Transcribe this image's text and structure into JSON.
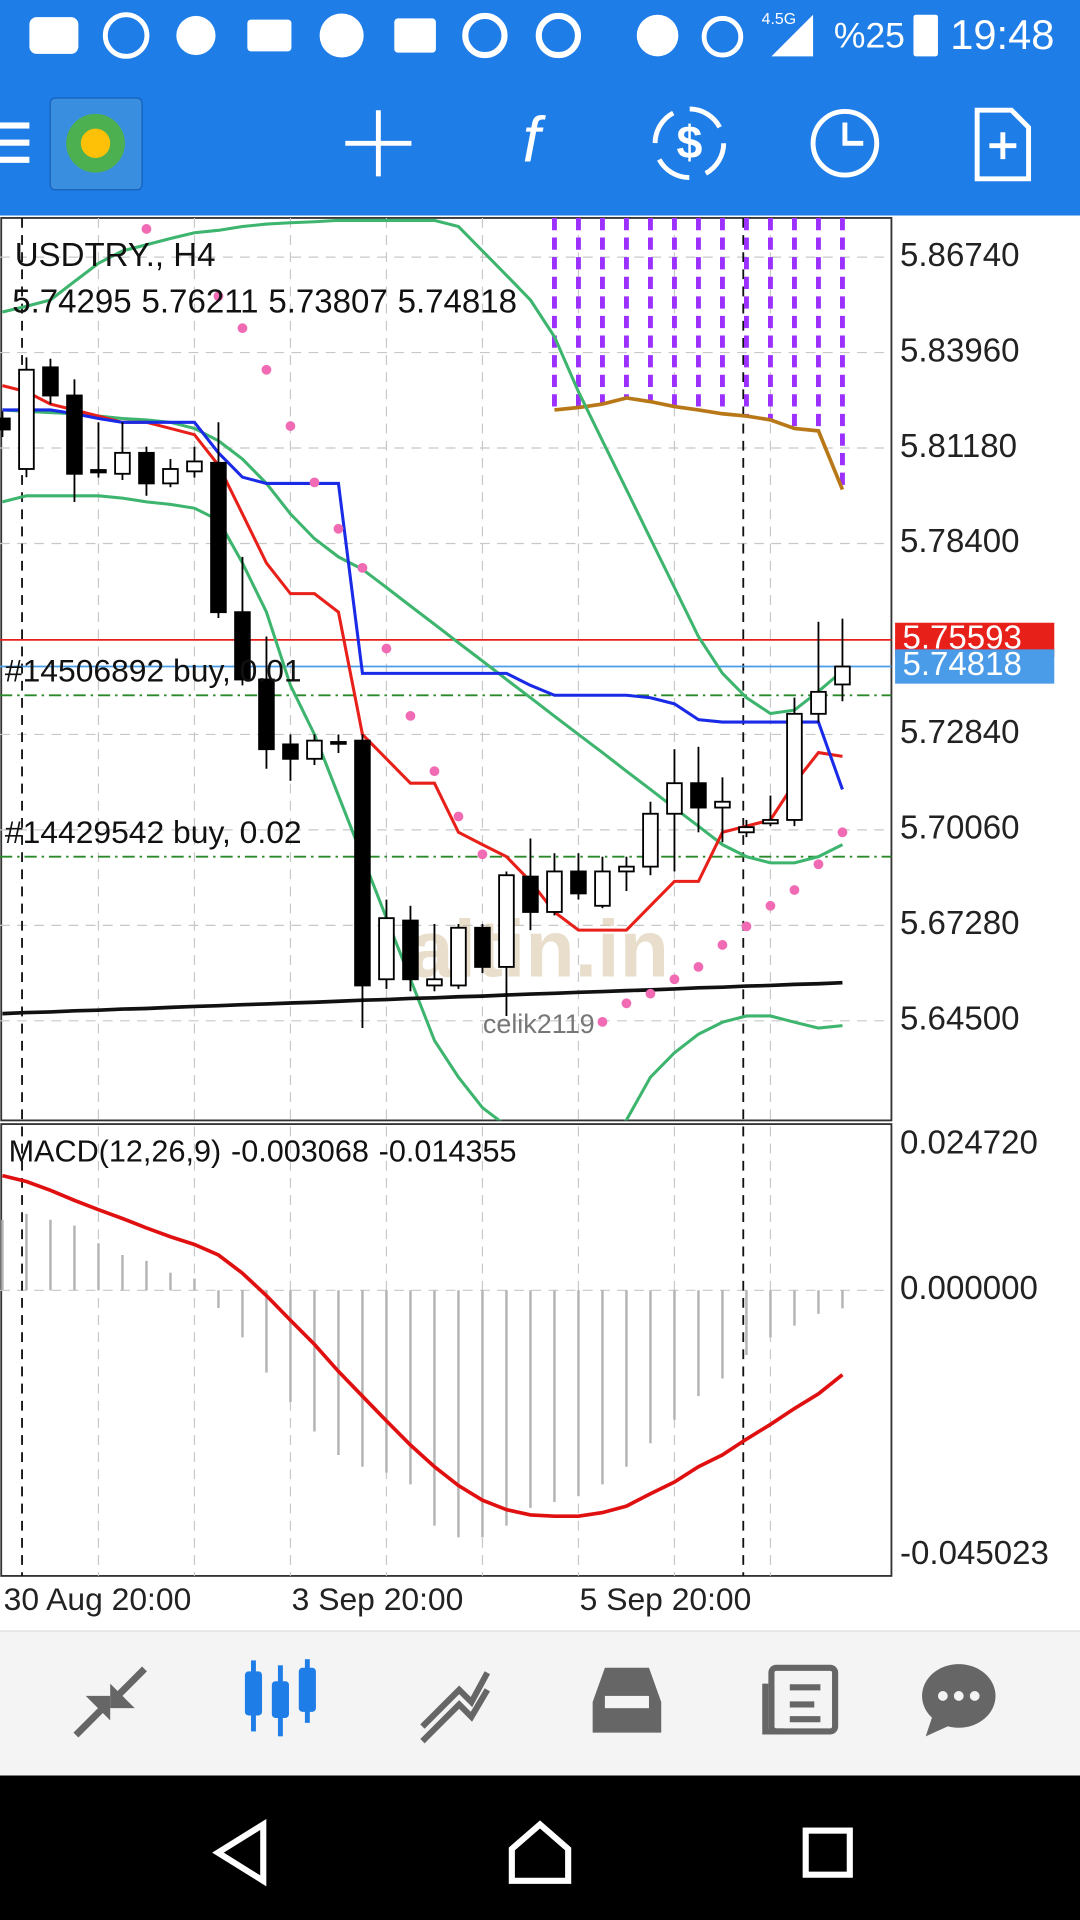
{
  "status_bar": {
    "network": "4.5G",
    "battery": "%25",
    "time": "19:48"
  },
  "chart_data": [
    {
      "type": "candlestick",
      "title": "USDTRY., H4",
      "categories": [
        "30 Aug 20:00",
        null,
        null,
        null,
        null,
        null,
        null,
        null,
        null,
        null,
        null,
        null,
        "3 Sep 20:00",
        null,
        null,
        null,
        null,
        null,
        null,
        null,
        null,
        null,
        null,
        null,
        "5 Sep 20:00",
        null,
        null,
        null,
        null,
        null,
        null,
        null,
        null,
        null,
        null,
        null
      ],
      "open": [
        5.8204,
        5.8057,
        5.8353,
        5.8271,
        5.8054,
        5.8043,
        5.8104,
        5.8015,
        5.805,
        5.8075,
        5.764,
        5.7444,
        5.7255,
        5.7213,
        5.7262,
        5.7266,
        5.6571,
        5.6742,
        5.6553,
        5.6553,
        5.6721,
        5.6607,
        5.687,
        5.6767,
        5.6885,
        5.6785,
        5.6885,
        5.6899,
        5.7053,
        5.7142,
        5.7071,
        5.6999,
        5.7025,
        5.7035,
        5.7344,
        5.74295
      ],
      "high": [
        5.8225,
        5.8382,
        5.8378,
        5.8318,
        5.8193,
        5.8193,
        5.8122,
        5.8086,
        5.8122,
        5.8193,
        5.7801,
        5.7569,
        5.7284,
        5.7284,
        5.7284,
        5.7284,
        5.6803,
        5.6785,
        5.6732,
        5.6732,
        5.6732,
        5.6885,
        5.6981,
        5.6938,
        5.6938,
        5.6928,
        5.6928,
        5.7088,
        5.7241,
        5.7248,
        5.7159,
        5.7035,
        5.7106,
        5.7391,
        5.7612,
        5.76211
      ],
      "low": [
        5.815,
        5.8033,
        5.8246,
        5.7961,
        5.8032,
        5.8025,
        5.7979,
        5.8004,
        5.8032,
        5.7623,
        5.7427,
        5.7184,
        5.7149,
        5.7195,
        5.723,
        5.6429,
        5.6543,
        5.6536,
        5.6536,
        5.6543,
        5.6589,
        5.6464,
        5.6714,
        5.6757,
        5.6803,
        5.6778,
        5.6828,
        5.6874,
        5.6885,
        5.6999,
        5.697,
        5.6985,
        5.7017,
        5.7017,
        5.7319,
        5.73807
      ],
      "close": [
        5.8172,
        5.8346,
        5.8271,
        5.8043,
        5.8047,
        5.8104,
        5.8015,
        5.8057,
        5.8079,
        5.764,
        5.7444,
        5.7241,
        5.7213,
        5.7266,
        5.7259,
        5.6553,
        5.6749,
        5.6571,
        5.6571,
        5.6721,
        5.6607,
        5.6874,
        5.6767,
        5.6885,
        5.6821,
        5.6885,
        5.6899,
        5.7053,
        5.7142,
        5.7071,
        5.7088,
        5.7014,
        5.7035,
        5.7344,
        5.7408,
        5.74818
      ],
      "up_color": "#ffffff",
      "down_color": "#000000",
      "ylim": [
        5.616,
        5.8788
      ],
      "yticks": [
        {
          "value": 5.8674,
          "label": "5.86740"
        },
        {
          "value": 5.8396,
          "label": "5.83960"
        },
        {
          "value": 5.8118,
          "label": "5.81180"
        },
        {
          "value": 5.784,
          "label": "5.78400"
        },
        {
          "value": 5.7284,
          "label": "5.72840"
        },
        {
          "value": 5.7006,
          "label": "5.70060"
        },
        {
          "value": 5.6728,
          "label": "5.67280"
        },
        {
          "value": 5.645,
          "label": "5.64500"
        }
      ],
      "grid": true,
      "cloud": {
        "color": "#9b30ff",
        "edge_color": "#b87818",
        "values": [
          null,
          null,
          null,
          null,
          null,
          null,
          null,
          null,
          null,
          null,
          null,
          null,
          null,
          null,
          null,
          null,
          null,
          null,
          null,
          null,
          null,
          null,
          null,
          5.8229,
          5.8236,
          5.8246,
          5.8264,
          5.8253,
          5.8239,
          5.8229,
          5.8218,
          5.8211,
          5.82,
          5.8175,
          5.8168,
          5.7997
        ]
      },
      "lines": [
        {
          "color": "#3db56e",
          "values": [
            5.8514,
            5.8531,
            5.8549,
            5.8603,
            5.8656,
            5.8692,
            5.871,
            5.8728,
            5.8745,
            5.8752,
            5.8763,
            5.877,
            5.8774,
            5.8777,
            5.8781,
            5.8781,
            5.8781,
            5.8781,
            5.8781,
            5.8763,
            5.8692,
            5.8621,
            5.8549,
            5.8442,
            5.8282,
            5.8139,
            5.7997,
            5.7854,
            5.7712,
            5.7569,
            5.7462,
            5.7391,
            5.7345,
            5.7355,
            5.7409,
            5.7469
          ]
        },
        {
          "color": "#3db56e",
          "values": [
            5.8229,
            5.8225,
            5.8221,
            5.8218,
            5.8211,
            5.8204,
            5.82,
            5.8193,
            5.8175,
            5.8139,
            5.8086,
            5.8015,
            5.7926,
            5.7854,
            5.7801,
            5.7765,
            5.7712,
            5.7658,
            5.7605,
            5.7551,
            5.7498,
            5.7444,
            5.7391,
            5.7337,
            5.7284,
            5.7231,
            5.7177,
            5.7124,
            5.707,
            5.7017,
            5.6963,
            5.6928,
            5.691,
            5.691,
            5.6928,
            5.6963
          ]
        },
        {
          "color": "#3db56e",
          "values": [
            5.7961,
            5.7979,
            5.7979,
            5.7979,
            5.7979,
            5.7972,
            5.7961,
            5.7954,
            5.7943,
            5.7908,
            5.7783,
            5.764,
            5.7427,
            5.7284,
            5.7106,
            5.6928,
            5.6749,
            5.6571,
            5.6393,
            5.6286,
            5.6197,
            5.6144,
            5.609,
            5.6054,
            5.6054,
            5.609,
            5.6161,
            5.6286,
            5.6357,
            5.6411,
            5.6446,
            5.6464,
            5.6464,
            5.6446,
            5.6429,
            5.6436
          ]
        },
        {
          "color": "#e8201a",
          "values": [
            5.83,
            5.8282,
            5.8246,
            5.8229,
            5.8211,
            5.8193,
            5.8193,
            5.8175,
            5.8157,
            5.8068,
            5.7926,
            5.7783,
            5.7694,
            5.7694,
            5.764,
            5.7284,
            5.7213,
            5.7142,
            5.7142,
            5.6999,
            5.6963,
            5.6928,
            5.6856,
            5.6767,
            5.6714,
            5.6714,
            5.6714,
            5.6785,
            5.6856,
            5.6856,
            5.6999,
            5.7017,
            5.7035,
            5.7142,
            5.7231,
            5.722
          ]
        },
        {
          "color": "#1a2be8",
          "values": [
            5.8229,
            5.8229,
            5.8229,
            5.8218,
            5.8204,
            5.8193,
            5.8193,
            5.8193,
            5.8193,
            5.8104,
            5.8033,
            5.8015,
            5.8015,
            5.8015,
            5.8015,
            5.7462,
            5.7462,
            5.7462,
            5.7462,
            5.7462,
            5.7462,
            5.7462,
            5.7427,
            5.7398,
            5.7398,
            5.7398,
            5.7398,
            5.7391,
            5.7373,
            5.7327,
            5.732,
            5.732,
            5.732,
            5.732,
            5.732,
            5.7124
          ]
        },
        {
          "color": "#111111",
          "values": [
            5.6471,
            5.6474,
            5.6476,
            5.6479,
            5.6481,
            5.6484,
            5.6486,
            5.6489,
            5.6492,
            5.6494,
            5.6497,
            5.6499,
            5.6502,
            5.6504,
            5.6507,
            5.651,
            5.6512,
            5.6515,
            5.6517,
            5.652,
            5.6522,
            5.6525,
            5.6528,
            5.653,
            5.6533,
            5.6535,
            5.6538,
            5.654,
            5.6543,
            5.6546,
            5.6548,
            5.6551,
            5.6553,
            5.6556,
            5.6558,
            5.6561
          ]
        }
      ],
      "sar": {
        "color": "#f06bb4",
        "values": [
          null,
          null,
          null,
          null,
          null,
          null,
          5.8756,
          null,
          null,
          5.856,
          5.8467,
          5.8346,
          5.8182,
          5.8018,
          5.7883,
          5.7769,
          5.7534,
          5.7338,
          5.7177,
          5.7045,
          5.6935,
          null,
          null,
          null,
          null,
          5.6447,
          5.6501,
          5.6529,
          5.6571,
          5.6607,
          5.6671,
          5.6725,
          5.6785,
          5.6831,
          5.6906,
          5.6999
        ]
      },
      "price_lines": [
        {
          "value": 5.75593,
          "color": "#e8201a"
        },
        {
          "value": 5.74818,
          "color": "#4a9be8"
        }
      ],
      "orders": [
        {
          "label": "#14506892 buy, 0.01",
          "value": 5.7398
        },
        {
          "label": "#14429542 buy, 0.02",
          "value": 5.6928
        }
      ],
      "watermark": "altin.in",
      "user": "celik2119"
    },
    {
      "type": "bar",
      "title": "MACD(12,26,9)",
      "series": [
        {
          "type": "bar",
          "color": "#b4b4b4",
          "values": [
            0.012,
            0.013,
            0.012,
            0.011,
            0.008,
            0.006,
            0.005,
            0.003,
            0.002,
            -0.003,
            -0.008,
            -0.014,
            -0.019,
            -0.024,
            -0.028,
            -0.03,
            -0.031,
            -0.033,
            -0.04,
            -0.042,
            -0.042,
            -0.04,
            -0.037,
            -0.036,
            -0.035,
            -0.033,
            -0.03,
            -0.026,
            -0.022,
            -0.018,
            -0.015,
            -0.011,
            -0.008,
            -0.006,
            -0.004,
            -0.003068
          ]
        },
        {
          "type": "line",
          "color": "#e01010",
          "values": [
            0.0195,
            0.0185,
            0.017,
            0.0153,
            0.0137,
            0.0122,
            0.0106,
            0.0091,
            0.0078,
            0.006,
            0.0029,
            -0.0009,
            -0.0051,
            -0.0092,
            -0.0138,
            -0.018,
            -0.0222,
            -0.0263,
            -0.03,
            -0.0332,
            -0.0357,
            -0.0373,
            -0.0382,
            -0.0384,
            -0.0384,
            -0.0378,
            -0.0367,
            -0.0346,
            -0.0326,
            -0.03,
            -0.028,
            -0.0253,
            -0.0228,
            -0.0201,
            -0.0176,
            -0.014355
          ]
        }
      ],
      "ylim": [
        -0.04856,
        0.02826
      ],
      "yticks": [
        {
          "value": 0.02472,
          "label": "0.024720"
        },
        {
          "value": 0,
          "label": "0.000000"
        },
        {
          "value": -0.045023,
          "label": "-0.045023"
        }
      ]
    }
  ]
}
